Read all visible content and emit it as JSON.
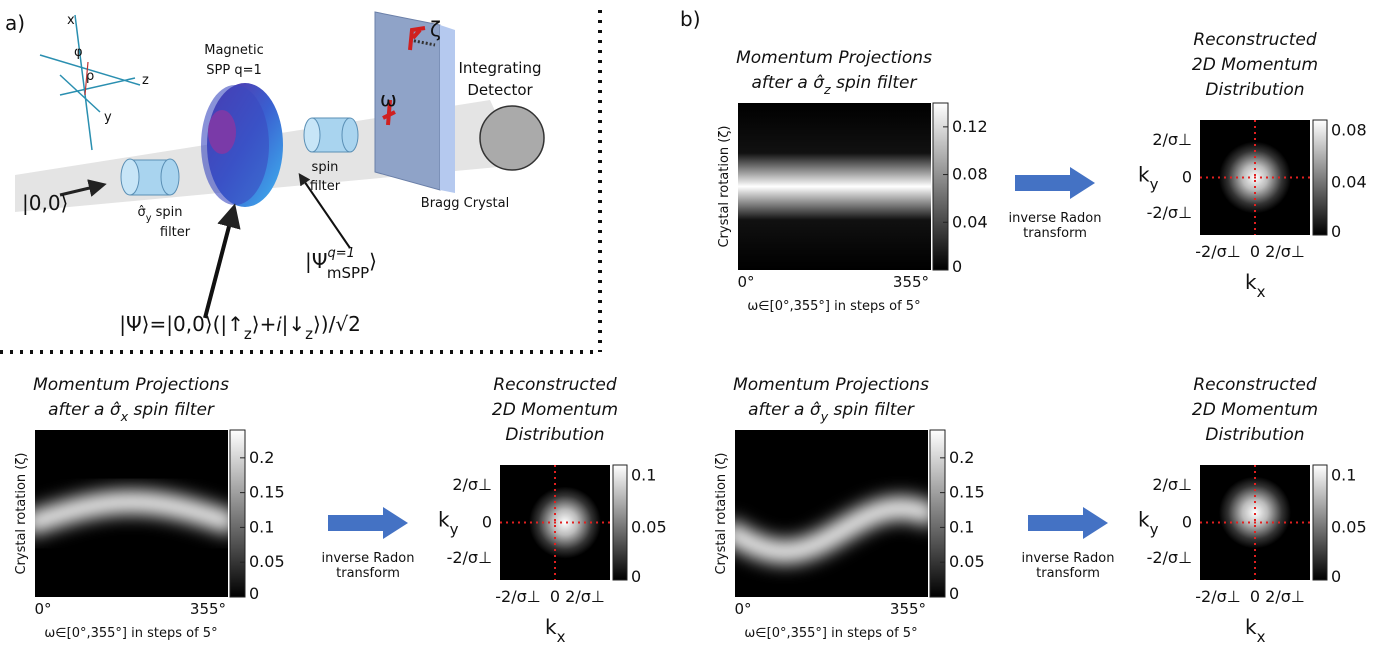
{
  "panel_labels": [
    "a)",
    "b)"
  ],
  "setup": {
    "axes": [
      "x",
      "φ",
      "ρ",
      "z",
      "y"
    ],
    "spp": [
      "Magnetic",
      "SPP q=1"
    ],
    "rotation": [
      "ζ",
      "ω"
    ],
    "detector": [
      "Integrating",
      "Detector"
    ],
    "spin_filter": [
      "spin",
      "filter"
    ],
    "crystal": "Bragg Crystal",
    "input": "|0,0⟩",
    "sy_filter": [
      "σ̂",
      "y",
      " spin",
      "filter"
    ],
    "output": [
      "|Ψ",
      "q=1",
      "mSPP",
      "⟩"
    ],
    "state": [
      "|Ψ⟩=|0,0⟩(|↑",
      "z",
      "⟩+𝑖|↓",
      "z",
      "⟩)/√2"
    ]
  },
  "transform": [
    "inverse Radon",
    "transform"
  ],
  "projections": [
    {
      "title": [
        "Momentum Projections",
        "after a ",
        "σ̂",
        "z",
        " spin filter"
      ],
      "ylabel": "Crystal rotation (ζ)",
      "xticks": [
        "0°",
        "355°"
      ],
      "xlabel": "ω∈[0°,355°] in steps of 5°",
      "colorbar": [
        0.12,
        0.08,
        0.04,
        0
      ]
    },
    {
      "title": [
        "Momentum Projections",
        "after a ",
        "σ̂",
        "x",
        " spin filter"
      ],
      "ylabel": "Crystal rotation (ζ)",
      "xticks": [
        "0°",
        "355°"
      ],
      "xlabel": "ω∈[0°,355°] in steps of 5°",
      "colorbar": [
        0.2,
        0.15,
        0.1,
        0.05,
        0
      ]
    },
    {
      "title": [
        "Momentum Projections",
        "after a ",
        "σ̂",
        "y",
        " spin filter"
      ],
      "ylabel": "Crystal rotation (ζ)",
      "xticks": [
        "0°",
        "355°"
      ],
      "xlabel": "ω∈[0°,355°] in steps of 5°",
      "colorbar": [
        0.2,
        0.15,
        0.1,
        0.05,
        0
      ]
    }
  ],
  "reconstructions": [
    {
      "title": [
        "Reconstructed",
        "2D Momentum",
        "Distribution"
      ],
      "yticks": [
        "2/σ⊥",
        "0",
        "-2/σ⊥"
      ],
      "ylabel": [
        "k",
        "y"
      ],
      "xticks": [
        "-2/σ⊥",
        "0",
        "2/σ⊥"
      ],
      "xlabel": [
        "k",
        "x"
      ],
      "colorbar": [
        0.08,
        0.04,
        0
      ]
    },
    {
      "title": [
        "Reconstructed",
        "2D Momentum",
        "Distribution"
      ],
      "yticks": [
        "2/σ⊥",
        "0",
        "-2/σ⊥"
      ],
      "ylabel": [
        "k",
        "y"
      ],
      "xticks": [
        "-2/σ⊥",
        "0",
        "2/σ⊥"
      ],
      "xlabel": [
        "k",
        "x"
      ],
      "colorbar": [
        0.1,
        0.05,
        0
      ]
    },
    {
      "title": [
        "Reconstructed",
        "2D Momentum",
        "Distribution"
      ],
      "yticks": [
        "2/σ⊥",
        "0",
        "-2/σ⊥"
      ],
      "ylabel": [
        "k",
        "y"
      ],
      "xticks": [
        "-2/σ⊥",
        "0",
        "2/σ⊥"
      ],
      "xlabel": [
        "k",
        "x"
      ],
      "colorbar": [
        0.1,
        0.05,
        0
      ]
    }
  ]
}
